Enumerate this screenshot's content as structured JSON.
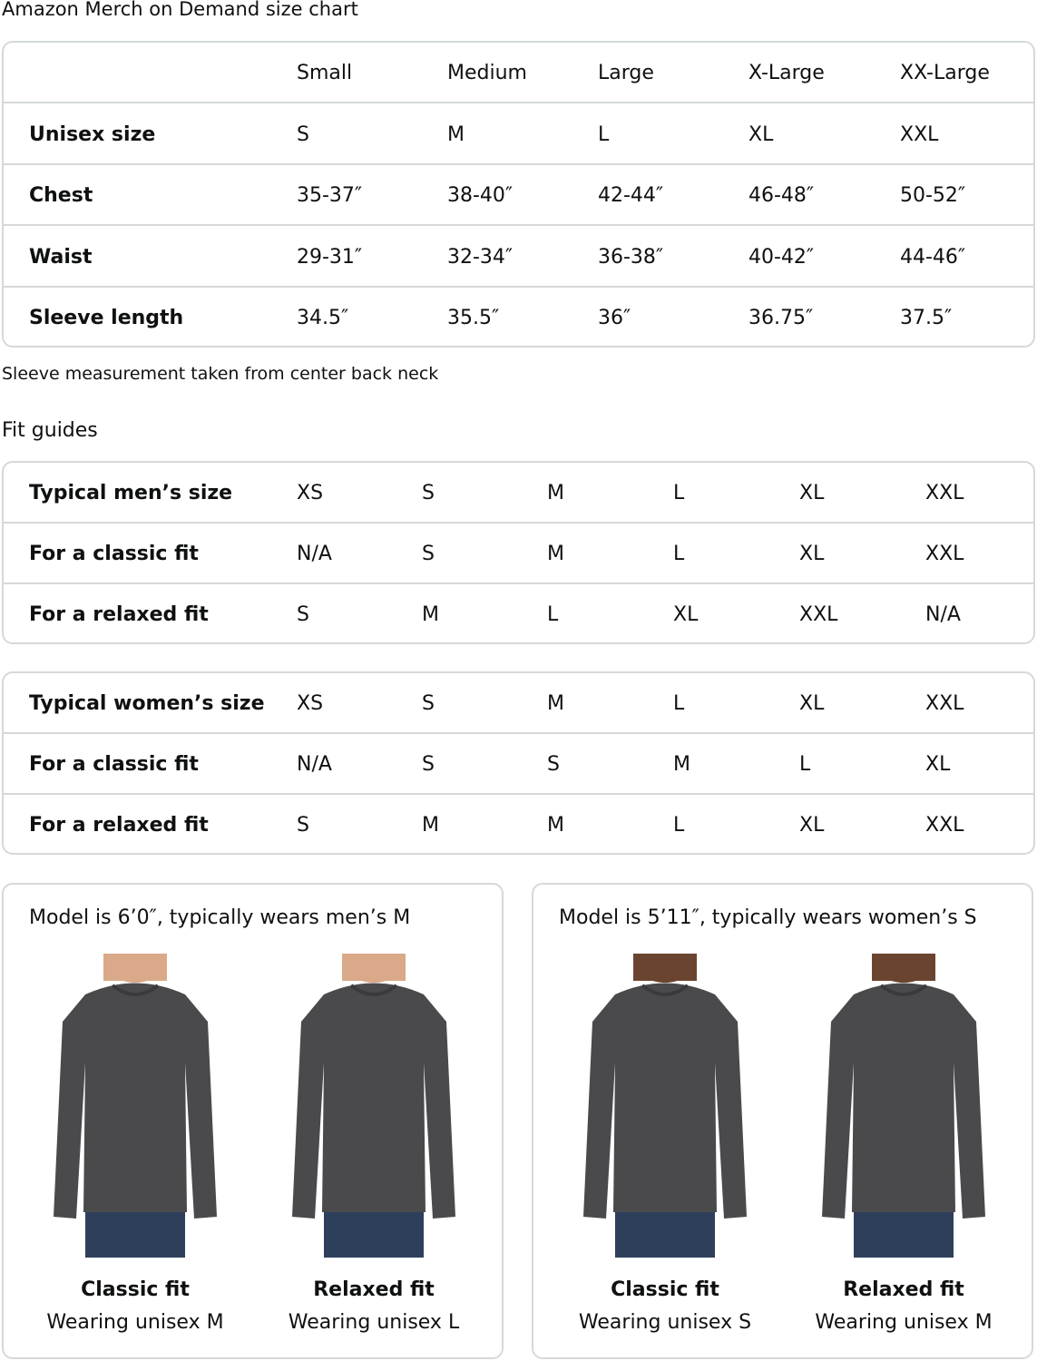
{
  "title": "Amazon Merch on Demand size chart",
  "size_chart": {
    "headers": [
      "",
      "Small",
      "Medium",
      "Large",
      "X-Large",
      "XX-Large"
    ],
    "rows": [
      {
        "label": "Unisex size",
        "values": [
          "S",
          "M",
          "L",
          "XL",
          "XXL"
        ]
      },
      {
        "label": "Chest",
        "values": [
          "35-37″",
          "38-40″",
          "42-44″",
          "46-48″",
          "50-52″"
        ]
      },
      {
        "label": "Waist",
        "values": [
          "29-31″",
          "32-34″",
          "36-38″",
          "40-42″",
          "44-46″"
        ]
      },
      {
        "label": "Sleeve length",
        "values": [
          "34.5″",
          "35.5″",
          "36″",
          "36.75″",
          "37.5″"
        ]
      }
    ]
  },
  "note": "Sleeve measurement taken from center back neck",
  "fit_guides_title": "Fit guides",
  "mens_fit": {
    "rows": [
      {
        "label": "Typical men’s size",
        "values": [
          "XS",
          "S",
          "M",
          "L",
          "XL",
          "XXL"
        ]
      },
      {
        "label": "For a classic fit",
        "values": [
          "N/A",
          "S",
          "M",
          "L",
          "XL",
          "XXL"
        ]
      },
      {
        "label": "For a relaxed fit",
        "values": [
          "S",
          "M",
          "L",
          "XL",
          "XXL",
          "N/A"
        ]
      }
    ]
  },
  "womens_fit": {
    "rows": [
      {
        "label": "Typical women’s size",
        "values": [
          "XS",
          "S",
          "M",
          "L",
          "XL",
          "XXL"
        ]
      },
      {
        "label": "For a classic fit",
        "values": [
          "N/A",
          "S",
          "S",
          "M",
          "L",
          "XL"
        ]
      },
      {
        "label": "For a relaxed fit",
        "values": [
          "S",
          "M",
          "M",
          "L",
          "XL",
          "XXL"
        ]
      }
    ]
  },
  "models": [
    {
      "title": "Model is 6’0″, typically wears men’s M",
      "fits": [
        {
          "name": "Classic fit",
          "wearing": "Wearing unisex M"
        },
        {
          "name": "Relaxed fit",
          "wearing": "Wearing unisex L"
        }
      ]
    },
    {
      "title": "Model is 5’11″, typically wears women’s S",
      "fits": [
        {
          "name": "Classic fit",
          "wearing": "Wearing unisex S"
        },
        {
          "name": "Relaxed fit",
          "wearing": "Wearing unisex M"
        }
      ]
    }
  ],
  "colors": {
    "border": "#d5d9d9",
    "shirt": "#4a4a4c",
    "jeans": "#2e3f5c",
    "skin_men": "#d9a98a",
    "skin_women": "#6b4430"
  }
}
